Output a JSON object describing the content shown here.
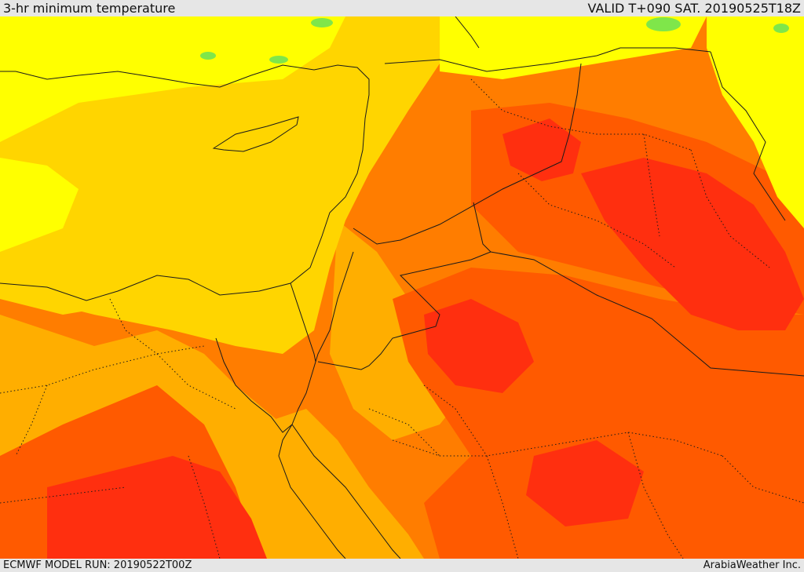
{
  "header": {
    "title": "3-hr minimum temperature",
    "valid": "VALID T+090 SAT. 20190525T18Z"
  },
  "footer": {
    "model_run": "ECMWF MODEL RUN: 20190522T00Z",
    "credit": "ArabiaWeather Inc."
  },
  "colors": {
    "temp_green": "#7fe64a",
    "temp_yellow": "#ffff00",
    "temp_gold": "#ffd500",
    "temp_amber": "#ffae00",
    "temp_orange": "#ff7d00",
    "temp_deep_orange": "#ff5a00",
    "temp_red": "#ff2f0f",
    "border_line": "#1a1a1a"
  }
}
